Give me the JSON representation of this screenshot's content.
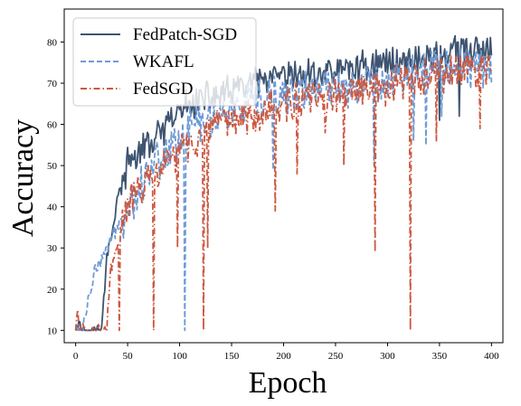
{
  "chart_data": {
    "type": "line",
    "title": "",
    "xlabel": "Epoch",
    "ylabel": "Accuracy",
    "xlim": [
      -11,
      411
    ],
    "ylim": [
      7,
      88
    ],
    "xticks": [
      0,
      50,
      100,
      150,
      200,
      250,
      300,
      350,
      400
    ],
    "yticks": [
      10,
      20,
      30,
      40,
      50,
      60,
      70,
      80
    ],
    "grid": false,
    "legend": {
      "position": "top-left"
    },
    "x": {
      "start": 0,
      "end": 400,
      "step": 1
    },
    "series": [
      {
        "name": "FedPatch-SGD",
        "color": "#3e5470",
        "style": "solid",
        "anchors": [
          [
            0,
            10
          ],
          [
            3,
            13
          ],
          [
            5,
            10
          ],
          [
            25,
            10
          ],
          [
            30,
            28
          ],
          [
            36,
            35
          ],
          [
            40,
            42
          ],
          [
            45,
            45
          ],
          [
            50,
            50
          ],
          [
            60,
            53
          ],
          [
            70,
            55
          ],
          [
            80,
            57
          ],
          [
            90,
            60
          ],
          [
            100,
            63
          ],
          [
            110,
            65
          ],
          [
            120,
            66
          ],
          [
            140,
            67
          ],
          [
            150,
            68
          ],
          [
            175,
            70
          ],
          [
            200,
            71
          ],
          [
            250,
            73
          ],
          [
            300,
            75
          ],
          [
            340,
            76
          ],
          [
            370,
            78
          ],
          [
            400,
            77
          ]
        ],
        "noise": 3.5,
        "dips": [
          [
            350,
            61
          ],
          [
            369,
            62
          ]
        ]
      },
      {
        "name": "WKAFL",
        "color": "#6e9bd6",
        "style": "dashed",
        "anchors": [
          [
            0,
            10
          ],
          [
            3,
            11
          ],
          [
            6,
            10
          ],
          [
            12,
            17
          ],
          [
            18,
            24
          ],
          [
            25,
            27
          ],
          [
            30,
            30
          ],
          [
            40,
            35
          ],
          [
            50,
            40
          ],
          [
            60,
            44
          ],
          [
            70,
            49
          ],
          [
            80,
            52
          ],
          [
            90,
            54
          ],
          [
            100,
            57
          ],
          [
            110,
            59
          ],
          [
            120,
            61
          ],
          [
            150,
            63
          ],
          [
            175,
            65
          ],
          [
            200,
            67
          ],
          [
            250,
            69
          ],
          [
            300,
            71
          ],
          [
            350,
            74
          ],
          [
            400,
            74
          ]
        ],
        "noise": 4.5,
        "dips": [
          [
            105,
            10
          ],
          [
            190,
            49
          ],
          [
            287,
            50
          ],
          [
            325,
            56
          ],
          [
            337,
            55
          ],
          [
            352,
            62
          ]
        ]
      },
      {
        "name": "FedSGD",
        "color": "#cc5840",
        "style": "dashdot",
        "anchors": [
          [
            0,
            10
          ],
          [
            2,
            15
          ],
          [
            4,
            10
          ],
          [
            30,
            10
          ],
          [
            33,
            24
          ],
          [
            40,
            30
          ],
          [
            45,
            36
          ],
          [
            50,
            40
          ],
          [
            60,
            44
          ],
          [
            70,
            46
          ],
          [
            80,
            48
          ],
          [
            90,
            51
          ],
          [
            100,
            54
          ],
          [
            110,
            55
          ],
          [
            120,
            57
          ],
          [
            140,
            59
          ],
          [
            150,
            61
          ],
          [
            175,
            63
          ],
          [
            200,
            65
          ],
          [
            250,
            67
          ],
          [
            300,
            69
          ],
          [
            350,
            72
          ],
          [
            400,
            74
          ]
        ],
        "noise": 4.0,
        "dips": [
          [
            42,
            10
          ],
          [
            75,
            10
          ],
          [
            98,
            30
          ],
          [
            123,
            10
          ],
          [
            127,
            30
          ],
          [
            192,
            39
          ],
          [
            213,
            48
          ],
          [
            240,
            58
          ],
          [
            258,
            50
          ],
          [
            288,
            29
          ],
          [
            322,
            10
          ],
          [
            347,
            56
          ],
          [
            389,
            59
          ]
        ]
      }
    ]
  }
}
